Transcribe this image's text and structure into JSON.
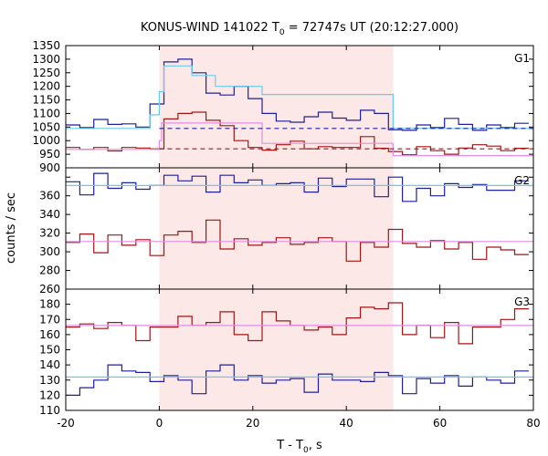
{
  "chart_data": {
    "type": "line",
    "title": {
      "main": "KONUS-WIND 141022 T",
      "sub": "0",
      "rest": " = 72747s UT (20:12:27.000)"
    },
    "xlabel": {
      "main": "T - T",
      "sub": "0",
      "rest": ", s"
    },
    "ylabel": "counts / sec",
    "xlim": [
      -20,
      80
    ],
    "xticks": [
      "-20",
      "0",
      "20",
      "40",
      "60",
      "80"
    ],
    "shaded_interval": [
      0,
      50
    ],
    "colors": {
      "blue": "#1f1f9c",
      "red": "#a31414",
      "lightblue": "#66ccee",
      "pink": "#e28ee2",
      "shade": "#fde8e8"
    },
    "panels": [
      {
        "label": "G1",
        "ylim": [
          900,
          1350
        ],
        "yticks": [
          "900",
          "950",
          "1000",
          "1050",
          "1100",
          "1150",
          "1200",
          "1250",
          "1300",
          "1350"
        ],
        "series": [
          {
            "color": "blue",
            "edges": [
              -20,
              -17,
              -14,
              -11,
              -8,
              -5,
              -2,
              1,
              4,
              7,
              10,
              13,
              16,
              19,
              22,
              25,
              28,
              31,
              34,
              37,
              40,
              43,
              46,
              49,
              52,
              55,
              58,
              61,
              64,
              67,
              70,
              73,
              76,
              79
            ],
            "values": [
              1058,
              1048,
              1078,
              1060,
              1062,
              1050,
              1135,
              1290,
              1300,
              1250,
              1175,
              1168,
              1200,
              1155,
              1100,
              1072,
              1068,
              1088,
              1105,
              1083,
              1075,
              1112,
              1100,
              1040,
              1038,
              1058,
              1048,
              1082,
              1060,
              1038,
              1058,
              1048,
              1064
            ]
          },
          {
            "color": "red",
            "edges": [
              -20,
              -17,
              -14,
              -11,
              -8,
              -5,
              -2,
              1,
              4,
              7,
              10,
              13,
              16,
              19,
              22,
              25,
              28,
              31,
              34,
              37,
              40,
              43,
              46,
              49,
              52,
              55,
              58,
              61,
              64,
              67,
              70,
              73,
              76,
              79
            ],
            "values": [
              975,
              968,
              975,
              962,
              975,
              973,
              970,
              1080,
              1100,
              1105,
              1075,
              1055,
              1000,
              975,
              965,
              985,
              998,
              970,
              978,
              975,
              975,
              1015,
              972,
              960,
              948,
              978,
              963,
              950,
              973,
              985,
              980,
              963,
              972
            ]
          },
          {
            "color": "lightblue",
            "edges": [
              -20,
              -8,
              -2,
              0,
              1,
              7,
              12,
              22,
              50,
              80
            ],
            "values": [
              1045,
              1045,
              1095,
              1180,
              1275,
              1240,
              1200,
              1170,
              1045
            ]
          },
          {
            "color": "pink",
            "edges": [
              -20,
              0,
              0.5,
              22,
              50,
              80
            ],
            "values": [
              968,
              1000,
              1065,
              990,
              945
            ]
          },
          {
            "color": "blue",
            "dashed": true,
            "edges": [
              0,
              80
            ],
            "values": [
              1045
            ]
          },
          {
            "color": "red",
            "dashed": true,
            "edges": [
              0,
              80
            ],
            "values": [
              970
            ]
          }
        ]
      },
      {
        "label": "G2",
        "ylim": [
          260,
          390
        ],
        "yticks": [
          "260",
          "280",
          "300",
          "320",
          "340",
          "360",
          "380"
        ],
        "series": [
          {
            "color": "blue",
            "edges": [
              -20,
              -17,
              -14,
              -11,
              -8,
              -5,
              -2,
              1,
              4,
              7,
              10,
              13,
              16,
              19,
              22,
              25,
              28,
              31,
              34,
              37,
              40,
              43,
              46,
              49,
              52,
              55,
              58,
              61,
              64,
              67,
              70,
              73,
              76,
              79
            ],
            "values": [
              375,
              361,
              384,
              368,
              374,
              367,
              371,
              382,
              376,
              381,
              364,
              382,
              374,
              377,
              371,
              373,
              374,
              364,
              379,
              370,
              378,
              378,
              359,
              380,
              354,
              368,
              360,
              373,
              369,
              372,
              366,
              366,
              376
            ]
          },
          {
            "color": "red",
            "edges": [
              -20,
              -17,
              -14,
              -11,
              -8,
              -5,
              -2,
              1,
              4,
              7,
              10,
              13,
              16,
              19,
              22,
              25,
              28,
              31,
              34,
              37,
              40,
              43,
              46,
              49,
              52,
              55,
              58,
              61,
              64,
              67,
              70,
              73,
              76,
              79
            ],
            "values": [
              310,
              319,
              299,
              318,
              307,
              313,
              296,
              318,
              322,
              310,
              334,
              303,
              314,
              307,
              310,
              315,
              308,
              310,
              315,
              311,
              290,
              310,
              305,
              324,
              309,
              305,
              312,
              303,
              310,
              292,
              305,
              302,
              297
            ]
          },
          {
            "color": "lightblue",
            "edges": [
              -20,
              80
            ],
            "values": [
              371
            ]
          },
          {
            "color": "pink",
            "edges": [
              -20,
              80
            ],
            "values": [
              311
            ]
          }
        ]
      },
      {
        "label": "G3",
        "ylim": [
          110,
          190
        ],
        "yticks": [
          "110",
          "120",
          "130",
          "140",
          "150",
          "160",
          "170",
          "180",
          "190"
        ],
        "series": [
          {
            "color": "red",
            "edges": [
              -20,
              -17,
              -14,
              -11,
              -8,
              -5,
              -2,
              1,
              4,
              7,
              10,
              13,
              16,
              19,
              22,
              25,
              28,
              31,
              34,
              37,
              40,
              43,
              46,
              49,
              52,
              55,
              58,
              61,
              64,
              67,
              70,
              73,
              76,
              79
            ],
            "values": [
              165,
              167,
              164,
              168,
              166,
              156,
              165,
              165,
              172,
              166,
              168,
              175,
              160,
              156,
              175,
              169,
              166,
              163,
              165,
              160,
              171,
              178,
              177,
              181,
              160,
              166,
              158,
              168,
              154,
              165,
              165,
              170,
              177
            ]
          },
          {
            "color": "blue",
            "edges": [
              -20,
              -17,
              -14,
              -11,
              -8,
              -5,
              -2,
              1,
              4,
              7,
              10,
              13,
              16,
              19,
              22,
              25,
              28,
              31,
              34,
              37,
              40,
              43,
              46,
              49,
              52,
              55,
              58,
              61,
              64,
              67,
              70,
              73,
              76,
              79
            ],
            "values": [
              120,
              125,
              130,
              140,
              136,
              135,
              129,
              133,
              130,
              121,
              136,
              140,
              130,
              133,
              128,
              130,
              131,
              122,
              134,
              130,
              130,
              129,
              135,
              133,
              121,
              131,
              128,
              133,
              126,
              132,
              130,
              128,
              136
            ]
          },
          {
            "color": "lightblue",
            "edges": [
              -20,
              80
            ],
            "values": [
              132
            ]
          },
          {
            "color": "pink",
            "edges": [
              -20,
              80
            ],
            "values": [
              166
            ]
          }
        ]
      }
    ]
  }
}
